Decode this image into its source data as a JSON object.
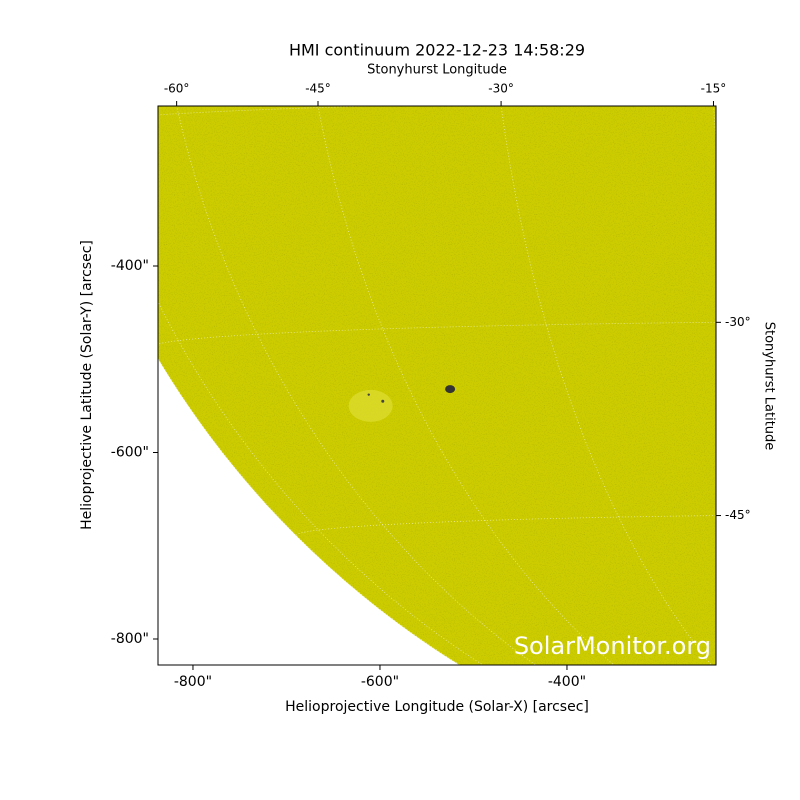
{
  "chart_data": {
    "type": "solar-image",
    "title": "HMI continuum 2022-12-23 14:58:29",
    "x_label": "Helioprojective Longitude (Solar-X) [arcsec]",
    "y_label": "Helioprojective Latitude (Solar-Y) [arcsec]",
    "x2_label": "Stonyhurst Longitude",
    "y2_label": "Stonyhurst Latitude",
    "watermark": "SolarMonitor.org",
    "color": "#cccc00",
    "xlim": [
      -837.4,
      -240.6
    ],
    "ylim": [
      -827.9,
      -228.4
    ],
    "xticks": [
      {
        "value": -800,
        "label": "-800\""
      },
      {
        "value": -600,
        "label": "-600\""
      },
      {
        "value": -400,
        "label": "-400\""
      }
    ],
    "yticks": [
      {
        "value": -800,
        "label": "-800\""
      },
      {
        "value": -600,
        "label": "-600\""
      },
      {
        "value": -400,
        "label": "-400\""
      }
    ],
    "x2ticks": [
      {
        "value": -60,
        "label": "-60°"
      },
      {
        "value": -45,
        "label": "-45°"
      },
      {
        "value": -30,
        "label": "-30°"
      },
      {
        "value": -15,
        "label": "-15°"
      }
    ],
    "y2ticks": [
      {
        "value": -30,
        "label": "-30°"
      },
      {
        "value": -45,
        "label": "-45°"
      }
    ],
    "grid": true
  }
}
